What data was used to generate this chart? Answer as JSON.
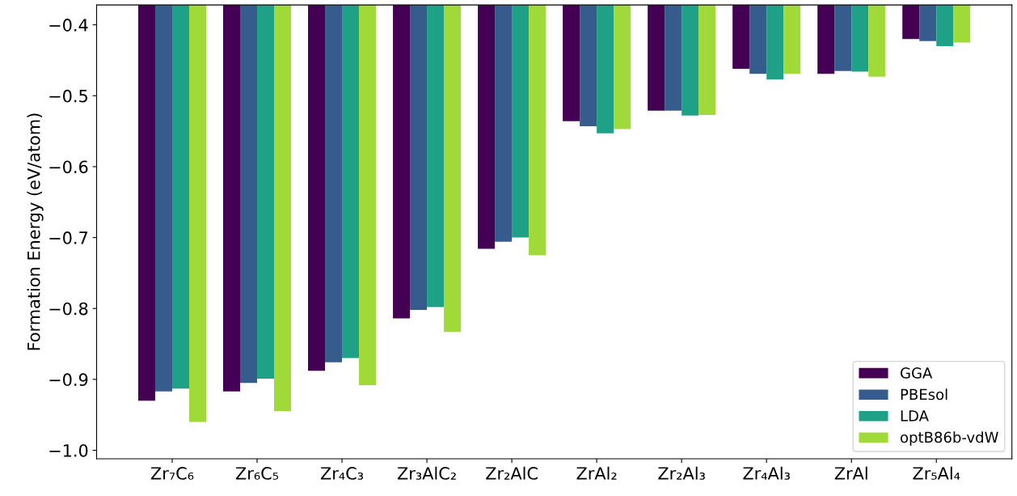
{
  "chart_data": {
    "type": "bar",
    "ylabel": "Formation Energy (eV/atom)",
    "categories": [
      "Zr₇C₆",
      "Zr₆C₅",
      "Zr₄C₃",
      "Zr₃AlC₂",
      "Zr₂AlC",
      "ZrAl₂",
      "Zr₂Al₃",
      "Zr₄Al₃",
      "ZrAl",
      "Zr₅Al₄"
    ],
    "series": [
      {
        "name": "GGA",
        "color": "#440154",
        "values": [
          -0.93,
          -0.917,
          -0.888,
          -0.814,
          -0.716,
          -0.536,
          -0.521,
          -0.462,
          -0.469,
          -0.42
        ]
      },
      {
        "name": "PBEsol",
        "color": "#365c8d",
        "values": [
          -0.917,
          -0.905,
          -0.876,
          -0.802,
          -0.706,
          -0.543,
          -0.521,
          -0.469,
          -0.465,
          -0.423
        ]
      },
      {
        "name": "LDA",
        "color": "#1fa187",
        "values": [
          -0.913,
          -0.899,
          -0.87,
          -0.798,
          -0.7,
          -0.553,
          -0.528,
          -0.477,
          -0.466,
          -0.43
        ]
      },
      {
        "name": "optB86b-vdW",
        "color": "#a0da39",
        "values": [
          -0.96,
          -0.945,
          -0.908,
          -0.833,
          -0.725,
          -0.547,
          -0.527,
          -0.469,
          -0.473,
          -0.425
        ]
      }
    ],
    "ylim": [
      -1.012,
      -0.372
    ],
    "yticks": [
      {
        "value": -1.0,
        "label": "−1.0"
      },
      {
        "value": -0.9,
        "label": "−0.9"
      },
      {
        "value": -0.8,
        "label": "−0.8"
      },
      {
        "value": -0.7,
        "label": "−0.7"
      },
      {
        "value": -0.6,
        "label": "−0.6"
      },
      {
        "value": -0.5,
        "label": "−0.5"
      },
      {
        "value": -0.4,
        "label": "−0.4"
      }
    ],
    "grid": false,
    "legend": "lower right"
  }
}
